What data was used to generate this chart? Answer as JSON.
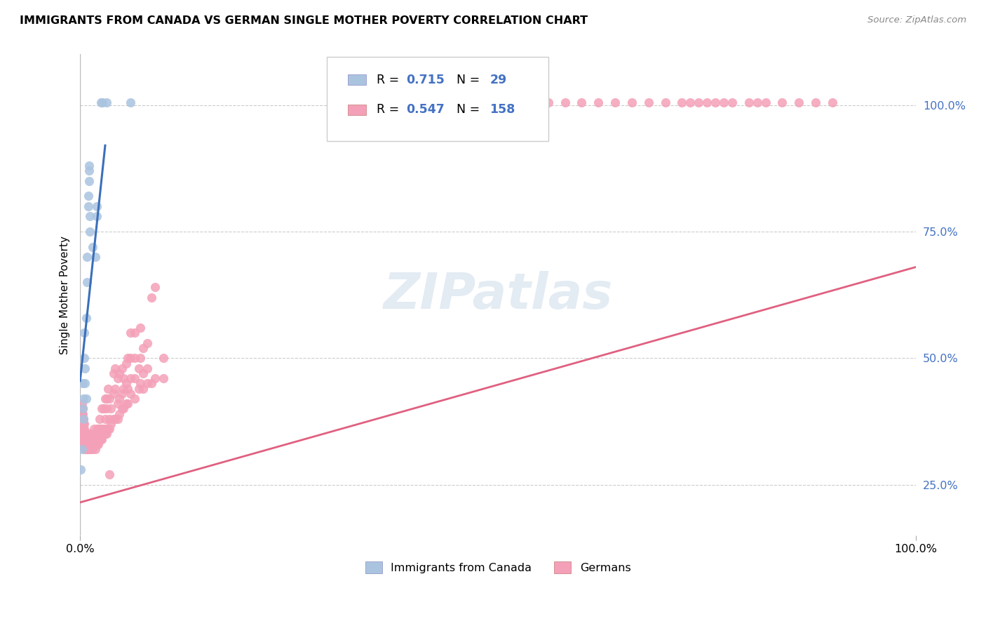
{
  "title": "IMMIGRANTS FROM CANADA VS GERMAN SINGLE MOTHER POVERTY CORRELATION CHART",
  "source": "Source: ZipAtlas.com",
  "ylabel": "Single Mother Poverty",
  "ytick_labels": [
    "25.0%",
    "50.0%",
    "75.0%",
    "100.0%"
  ],
  "ytick_values": [
    0.25,
    0.5,
    0.75,
    1.0
  ],
  "xtick_labels": [
    "0.0%",
    "100.0%"
  ],
  "xtick_values": [
    0.0,
    1.0
  ],
  "legend_blue_r": "0.715",
  "legend_blue_n": "29",
  "legend_pink_r": "0.547",
  "legend_pink_n": "158",
  "legend_label_blue": "Immigrants from Canada",
  "legend_label_pink": "Germans",
  "watermark": "ZIPatlas",
  "blue_color": "#aac4e0",
  "pink_color": "#f4a0b8",
  "blue_line_color": "#3b6fba",
  "pink_line_color": "#e06080",
  "blue_scatter": [
    [
      0.001,
      0.28
    ],
    [
      0.002,
      0.32
    ],
    [
      0.003,
      0.4
    ],
    [
      0.003,
      0.45
    ],
    [
      0.004,
      0.38
    ],
    [
      0.004,
      0.42
    ],
    [
      0.005,
      0.5
    ],
    [
      0.005,
      0.55
    ],
    [
      0.006,
      0.45
    ],
    [
      0.006,
      0.48
    ],
    [
      0.007,
      0.42
    ],
    [
      0.007,
      0.58
    ],
    [
      0.008,
      0.65
    ],
    [
      0.008,
      0.7
    ],
    [
      0.01,
      0.8
    ],
    [
      0.01,
      0.82
    ],
    [
      0.011,
      0.85
    ],
    [
      0.011,
      0.87
    ],
    [
      0.011,
      0.88
    ],
    [
      0.012,
      0.75
    ],
    [
      0.012,
      0.78
    ],
    [
      0.015,
      0.72
    ],
    [
      0.018,
      0.7
    ],
    [
      0.02,
      0.78
    ],
    [
      0.02,
      0.8
    ],
    [
      0.025,
      1.005
    ],
    [
      0.027,
      1.005
    ],
    [
      0.032,
      1.005
    ],
    [
      0.06,
      1.005
    ]
  ],
  "pink_scatter": [
    [
      0.001,
      0.38
    ],
    [
      0.001,
      0.39
    ],
    [
      0.001,
      0.4
    ],
    [
      0.001,
      0.36
    ],
    [
      0.002,
      0.35
    ],
    [
      0.002,
      0.36
    ],
    [
      0.002,
      0.38
    ],
    [
      0.002,
      0.39
    ],
    [
      0.002,
      0.41
    ],
    [
      0.002,
      0.37
    ],
    [
      0.003,
      0.34
    ],
    [
      0.003,
      0.35
    ],
    [
      0.003,
      0.36
    ],
    [
      0.003,
      0.37
    ],
    [
      0.003,
      0.38
    ],
    [
      0.003,
      0.39
    ],
    [
      0.003,
      0.4
    ],
    [
      0.003,
      0.36
    ],
    [
      0.004,
      0.33
    ],
    [
      0.004,
      0.34
    ],
    [
      0.004,
      0.35
    ],
    [
      0.004,
      0.36
    ],
    [
      0.004,
      0.37
    ],
    [
      0.004,
      0.38
    ],
    [
      0.004,
      0.35
    ],
    [
      0.005,
      0.33
    ],
    [
      0.005,
      0.34
    ],
    [
      0.005,
      0.35
    ],
    [
      0.005,
      0.36
    ],
    [
      0.005,
      0.37
    ],
    [
      0.005,
      0.34
    ],
    [
      0.006,
      0.32
    ],
    [
      0.006,
      0.33
    ],
    [
      0.006,
      0.34
    ],
    [
      0.006,
      0.35
    ],
    [
      0.006,
      0.33
    ],
    [
      0.006,
      0.32
    ],
    [
      0.007,
      0.32
    ],
    [
      0.007,
      0.33
    ],
    [
      0.007,
      0.34
    ],
    [
      0.007,
      0.32
    ],
    [
      0.008,
      0.32
    ],
    [
      0.008,
      0.33
    ],
    [
      0.008,
      0.34
    ],
    [
      0.008,
      0.35
    ],
    [
      0.009,
      0.32
    ],
    [
      0.009,
      0.33
    ],
    [
      0.009,
      0.34
    ],
    [
      0.01,
      0.32
    ],
    [
      0.01,
      0.33
    ],
    [
      0.01,
      0.34
    ],
    [
      0.01,
      0.35
    ],
    [
      0.011,
      0.33
    ],
    [
      0.011,
      0.34
    ],
    [
      0.012,
      0.32
    ],
    [
      0.012,
      0.33
    ],
    [
      0.012,
      0.35
    ],
    [
      0.013,
      0.33
    ],
    [
      0.013,
      0.34
    ],
    [
      0.014,
      0.32
    ],
    [
      0.014,
      0.33
    ],
    [
      0.014,
      0.34
    ],
    [
      0.015,
      0.32
    ],
    [
      0.015,
      0.33
    ],
    [
      0.015,
      0.34
    ],
    [
      0.015,
      0.35
    ],
    [
      0.016,
      0.33
    ],
    [
      0.016,
      0.34
    ],
    [
      0.016,
      0.35
    ],
    [
      0.017,
      0.33
    ],
    [
      0.017,
      0.34
    ],
    [
      0.017,
      0.36
    ],
    [
      0.018,
      0.32
    ],
    [
      0.018,
      0.33
    ],
    [
      0.018,
      0.34
    ],
    [
      0.019,
      0.33
    ],
    [
      0.019,
      0.34
    ],
    [
      0.019,
      0.35
    ],
    [
      0.02,
      0.33
    ],
    [
      0.02,
      0.34
    ],
    [
      0.02,
      0.35
    ],
    [
      0.021,
      0.34
    ],
    [
      0.021,
      0.35
    ],
    [
      0.021,
      0.36
    ],
    [
      0.022,
      0.33
    ],
    [
      0.022,
      0.34
    ],
    [
      0.022,
      0.35
    ],
    [
      0.022,
      0.36
    ],
    [
      0.023,
      0.34
    ],
    [
      0.023,
      0.35
    ],
    [
      0.023,
      0.36
    ],
    [
      0.023,
      0.38
    ],
    [
      0.025,
      0.34
    ],
    [
      0.025,
      0.35
    ],
    [
      0.025,
      0.36
    ],
    [
      0.026,
      0.34
    ],
    [
      0.026,
      0.35
    ],
    [
      0.026,
      0.36
    ],
    [
      0.026,
      0.4
    ],
    [
      0.028,
      0.35
    ],
    [
      0.028,
      0.36
    ],
    [
      0.028,
      0.4
    ],
    [
      0.03,
      0.35
    ],
    [
      0.03,
      0.36
    ],
    [
      0.03,
      0.38
    ],
    [
      0.03,
      0.42
    ],
    [
      0.032,
      0.35
    ],
    [
      0.032,
      0.4
    ],
    [
      0.032,
      0.42
    ],
    [
      0.033,
      0.36
    ],
    [
      0.033,
      0.44
    ],
    [
      0.035,
      0.36
    ],
    [
      0.035,
      0.38
    ],
    [
      0.035,
      0.42
    ],
    [
      0.035,
      0.27
    ],
    [
      0.037,
      0.37
    ],
    [
      0.037,
      0.4
    ],
    [
      0.04,
      0.38
    ],
    [
      0.04,
      0.43
    ],
    [
      0.04,
      0.47
    ],
    [
      0.042,
      0.38
    ],
    [
      0.042,
      0.44
    ],
    [
      0.042,
      0.48
    ],
    [
      0.045,
      0.38
    ],
    [
      0.045,
      0.41
    ],
    [
      0.045,
      0.46
    ],
    [
      0.047,
      0.39
    ],
    [
      0.047,
      0.42
    ],
    [
      0.047,
      0.47
    ],
    [
      0.05,
      0.4
    ],
    [
      0.05,
      0.43
    ],
    [
      0.05,
      0.48
    ],
    [
      0.052,
      0.4
    ],
    [
      0.052,
      0.44
    ],
    [
      0.052,
      0.46
    ],
    [
      0.055,
      0.41
    ],
    [
      0.055,
      0.45
    ],
    [
      0.055,
      0.49
    ],
    [
      0.057,
      0.41
    ],
    [
      0.057,
      0.44
    ],
    [
      0.057,
      0.5
    ],
    [
      0.06,
      0.43
    ],
    [
      0.06,
      0.46
    ],
    [
      0.06,
      0.5
    ],
    [
      0.06,
      0.55
    ],
    [
      0.065,
      0.42
    ],
    [
      0.065,
      0.46
    ],
    [
      0.065,
      0.5
    ],
    [
      0.065,
      0.55
    ],
    [
      0.07,
      0.44
    ],
    [
      0.07,
      0.48
    ],
    [
      0.072,
      0.45
    ],
    [
      0.072,
      0.5
    ],
    [
      0.072,
      0.56
    ],
    [
      0.075,
      0.44
    ],
    [
      0.075,
      0.47
    ],
    [
      0.075,
      0.52
    ],
    [
      0.08,
      0.45
    ],
    [
      0.08,
      0.48
    ],
    [
      0.08,
      0.53
    ],
    [
      0.085,
      0.45
    ],
    [
      0.085,
      0.62
    ],
    [
      0.09,
      0.46
    ],
    [
      0.09,
      0.64
    ],
    [
      0.1,
      0.46
    ],
    [
      0.1,
      0.5
    ],
    [
      0.56,
      1.005
    ],
    [
      0.58,
      1.005
    ],
    [
      0.6,
      1.005
    ],
    [
      0.62,
      1.005
    ],
    [
      0.64,
      1.005
    ],
    [
      0.66,
      1.005
    ],
    [
      0.68,
      1.005
    ],
    [
      0.7,
      1.005
    ],
    [
      0.72,
      1.005
    ],
    [
      0.73,
      1.005
    ],
    [
      0.74,
      1.005
    ],
    [
      0.75,
      1.005
    ],
    [
      0.76,
      1.005
    ],
    [
      0.77,
      1.005
    ],
    [
      0.78,
      1.005
    ],
    [
      0.8,
      1.005
    ],
    [
      0.81,
      1.005
    ],
    [
      0.82,
      1.005
    ],
    [
      0.84,
      1.005
    ],
    [
      0.86,
      1.005
    ],
    [
      0.88,
      1.005
    ],
    [
      0.9,
      1.005
    ]
  ],
  "xlim": [
    0.0,
    1.0
  ],
  "ylim": [
    0.15,
    1.1
  ],
  "blue_line_x": [
    0.0,
    0.03
  ],
  "blue_line_y": [
    0.455,
    0.92
  ],
  "pink_line_x": [
    0.0,
    1.0
  ],
  "pink_line_y": [
    0.215,
    0.68
  ]
}
